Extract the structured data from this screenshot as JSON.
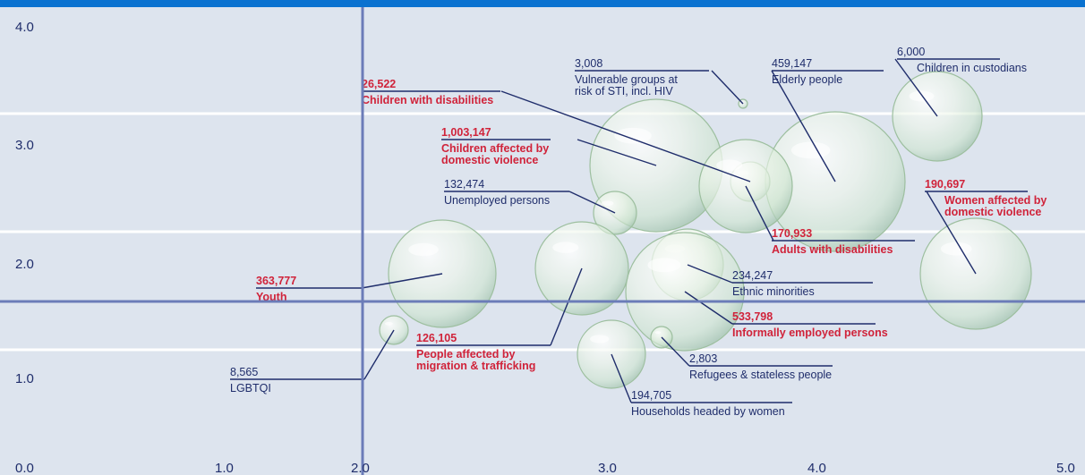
{
  "colors": {
    "background": "#dde4ee",
    "top_bar": "#0a72d0",
    "grid": "#ffffff",
    "crosshair": "#6b7cb8",
    "text_dark": "#1f2d6b",
    "text_highlight": "#d0233a",
    "bubble_tint": "#cfe6cf"
  },
  "chart_data": {
    "type": "scatter",
    "title": "",
    "xlabel": "",
    "ylabel": "",
    "xlim": [
      0,
      5
    ],
    "ylim": [
      0,
      4.2
    ],
    "x_ticks": [
      "0.0",
      "1.0",
      "2.0",
      "3.0",
      "4.0",
      "5.0"
    ],
    "y_ticks": [
      "1.0",
      "2.0",
      "3.0",
      "4.0"
    ],
    "crosshair": {
      "x": 2.0,
      "y": 1.73
    },
    "grid": true,
    "points": [
      {
        "name": "Children in custodians",
        "value_label": "6,000",
        "x": 4.6,
        "y": 3.35,
        "highlight": false
      },
      {
        "name": "Elderly people",
        "value_label": "459,147",
        "x": 4.1,
        "y": 2.8,
        "highlight": false
      },
      {
        "name": "Vulnerable groups at risk of STI, incl. HIV",
        "value_label": "3,008",
        "x": 3.7,
        "y": 3.35,
        "highlight": false
      },
      {
        "name": "Children with disabilities",
        "value_label": "26,522",
        "x": 3.55,
        "y": 2.75,
        "highlight": true
      },
      {
        "name": "Children affected by domestic violence",
        "value_label": "1,003,147",
        "x": 3.3,
        "y": 2.85,
        "highlight": true
      },
      {
        "name": "Adults with disabilities",
        "value_label": "170,933",
        "x": 3.6,
        "y": 2.7,
        "highlight": true
      },
      {
        "name": "Women affected by domestic violence",
        "value_label": "190,697",
        "x": 4.7,
        "y": 1.9,
        "highlight": true
      },
      {
        "name": "Unemployed persons",
        "value_label": "132,474",
        "x": 2.95,
        "y": 2.45,
        "highlight": false
      },
      {
        "name": "Youth",
        "value_label": "363,777",
        "x": 2.4,
        "y": 1.9,
        "highlight": true
      },
      {
        "name": "Ethnic minorities",
        "value_label": "234,247",
        "x": 3.4,
        "y": 2.0,
        "highlight": false
      },
      {
        "name": "Informally employed persons",
        "value_label": "533,798",
        "x": 3.3,
        "y": 1.8,
        "highlight": true
      },
      {
        "name": "People affected by migration & trafficking",
        "value_label": "126,105",
        "x": 2.8,
        "y": 1.85,
        "highlight": true
      },
      {
        "name": "LGBTQI",
        "value_label": "8,565",
        "x": 2.15,
        "y": 1.45,
        "highlight": false
      },
      {
        "name": "Refugees & stateless people",
        "value_label": "2,803",
        "x": 3.25,
        "y": 1.4,
        "highlight": false
      },
      {
        "name": "Households headed by women",
        "value_label": "194,705",
        "x": 2.95,
        "y": 1.25,
        "highlight": false
      }
    ]
  }
}
